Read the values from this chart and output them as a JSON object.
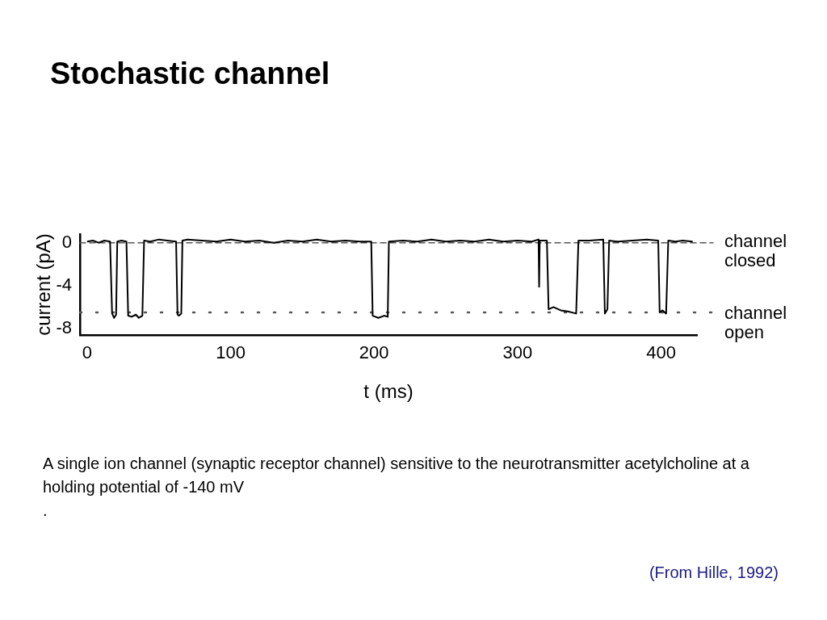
{
  "chart_data": {
    "type": "line",
    "title": "Stochastic channel",
    "xlabel": "t (ms)",
    "ylabel": "current (pA)",
    "xlim": [
      -5,
      425
    ],
    "xticks": [
      0,
      100,
      200,
      300,
      400
    ],
    "ylim": [
      -8.6,
      0.8
    ],
    "yticks": [
      0,
      -4,
      -8
    ],
    "grid": false,
    "legend": false,
    "marker": "none",
    "series": [
      {
        "color": "#000000",
        "line_style": "solid",
        "x": [
          0,
          4,
          8,
          12,
          16,
          17.4,
          18.8,
          20.2,
          21,
          24,
          27.4,
          28.6,
          31,
          34,
          36,
          38.5,
          39.7,
          44,
          50,
          56,
          62,
          63,
          64,
          65.6,
          66.4,
          70,
          80,
          90,
          100,
          110,
          120,
          130,
          140,
          150,
          160,
          170,
          180,
          190,
          198,
          199,
          203,
          207,
          209.5,
          210.3,
          220,
          230,
          240,
          250,
          260,
          270,
          280,
          290,
          300,
          310,
          314.6,
          315,
          315.4,
          320.4,
          321.6,
          325,
          330,
          335,
          340.8,
          342.4,
          350,
          359.7,
          360.8,
          362.6,
          363.8,
          370,
          380,
          390,
          398,
          399,
          401,
          403.5,
          405,
          410,
          415,
          422
        ],
        "values": [
          0.1,
          0.2,
          0,
          0.2,
          0.1,
          -6.6,
          -7,
          -6.7,
          0.1,
          0.2,
          0.1,
          -6.8,
          -6.9,
          -6.7,
          -7,
          -6.8,
          0.2,
          0.1,
          0.3,
          0.2,
          0.1,
          -6.7,
          -6.8,
          -6.6,
          0.2,
          0.3,
          0.2,
          0.1,
          0.3,
          0.1,
          0.2,
          0,
          0.2,
          0.1,
          0.3,
          0.1,
          0.2,
          0.1,
          0.1,
          -6.8,
          -7,
          -6.8,
          -6.9,
          0.1,
          0.2,
          0.1,
          0.3,
          0.1,
          0.2,
          0.1,
          0.3,
          0.1,
          0.2,
          0.1,
          0.3,
          -4.1,
          0.2,
          0.2,
          -6.2,
          -6,
          -6.3,
          -6.4,
          -6.6,
          0.2,
          0.2,
          0.3,
          -6.6,
          -6.2,
          0.2,
          0.1,
          0.2,
          0.3,
          0.2,
          -6.5,
          -6.3,
          -6.6,
          0.2,
          0.1,
          0.2,
          0.1
        ]
      }
    ],
    "ref_lines": [
      {
        "axis": "y",
        "value": 0,
        "label": "channel closed",
        "line_style": "dashed",
        "color": "#555555"
      },
      {
        "axis": "y",
        "value": -6.5,
        "label": "channel open",
        "line_style": "dotted",
        "color": "#555555"
      }
    ],
    "annotations": [
      "A single ion channel (synaptic receptor channel) sensitive to the neurotransmitter acetylcholine at a holding potential of -140 mV",
      ".",
      "(From Hille, 1992)"
    ]
  }
}
